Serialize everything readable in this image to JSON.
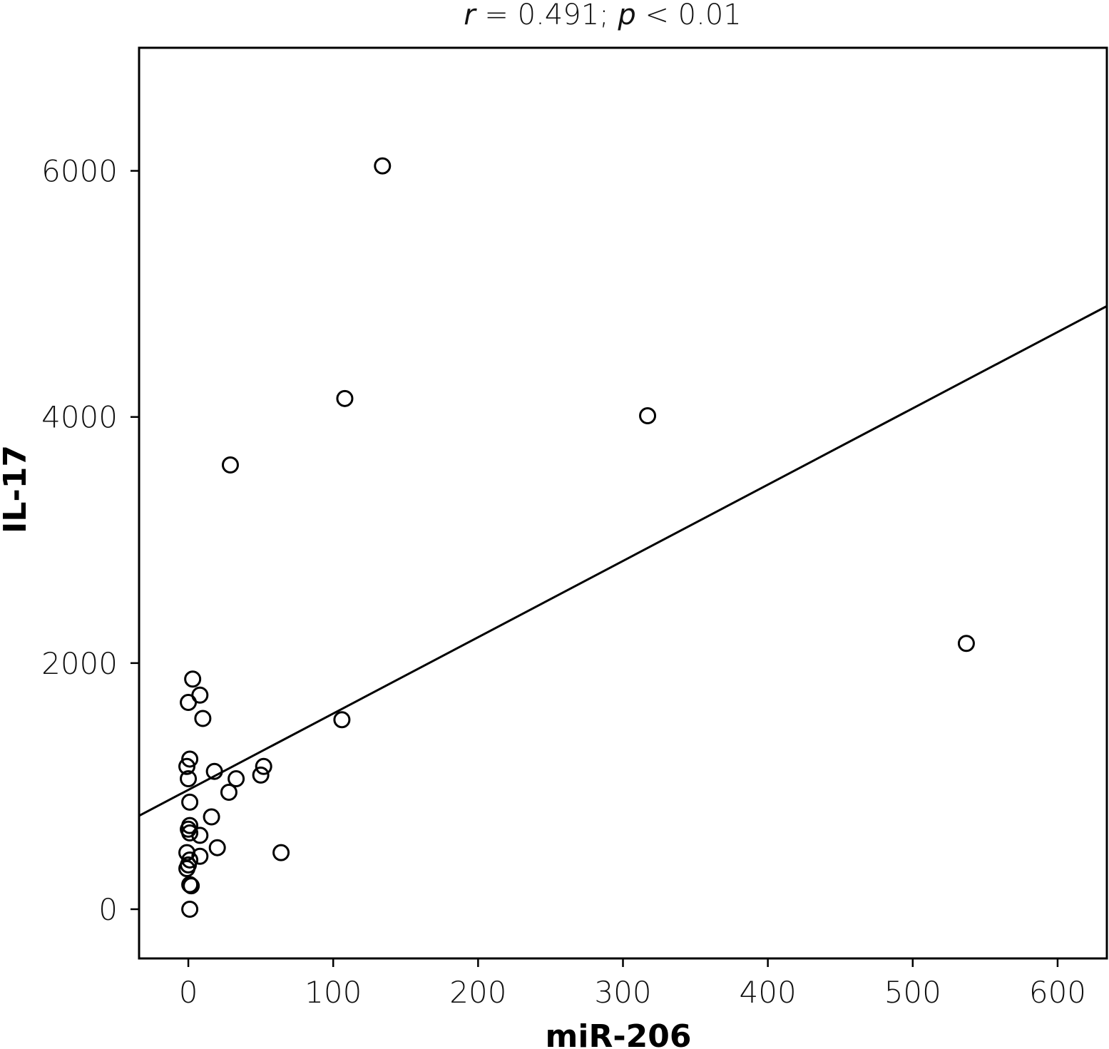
{
  "chart_data": {
    "type": "scatter",
    "title": "",
    "annotation": {
      "r_symbol": "r",
      "r_text": " = 0.491; ",
      "p_symbol": "p",
      "p_text": " < 0.01"
    },
    "xlabel": "miR-206",
    "ylabel": "IL-17",
    "xlim": [
      -34,
      634
    ],
    "ylim": [
      -400,
      7000
    ],
    "xticks": [
      0,
      100,
      200,
      300,
      400,
      500,
      600
    ],
    "yticks": [
      0,
      2000,
      4000,
      6000
    ],
    "grid": false,
    "marker": "open-circle",
    "points": [
      {
        "x": 134,
        "y": 6040
      },
      {
        "x": 108,
        "y": 4150
      },
      {
        "x": 317,
        "y": 4010
      },
      {
        "x": 29,
        "y": 3610
      },
      {
        "x": 537,
        "y": 2160
      },
      {
        "x": 3,
        "y": 1870
      },
      {
        "x": 8,
        "y": 1740
      },
      {
        "x": 0,
        "y": 1680
      },
      {
        "x": 10,
        "y": 1550
      },
      {
        "x": 106,
        "y": 1540
      },
      {
        "x": 1,
        "y": 1220
      },
      {
        "x": -1,
        "y": 1160
      },
      {
        "x": 52,
        "y": 1160
      },
      {
        "x": 18,
        "y": 1120
      },
      {
        "x": 50,
        "y": 1090
      },
      {
        "x": 0,
        "y": 1060
      },
      {
        "x": 33,
        "y": 1060
      },
      {
        "x": 28,
        "y": 950
      },
      {
        "x": 1,
        "y": 870
      },
      {
        "x": 16,
        "y": 750
      },
      {
        "x": 1,
        "y": 680
      },
      {
        "x": 0,
        "y": 650
      },
      {
        "x": 1,
        "y": 620
      },
      {
        "x": 8,
        "y": 600
      },
      {
        "x": 20,
        "y": 500
      },
      {
        "x": -1,
        "y": 460
      },
      {
        "x": 64,
        "y": 460
      },
      {
        "x": 8,
        "y": 430
      },
      {
        "x": 1,
        "y": 400
      },
      {
        "x": 0,
        "y": 360
      },
      {
        "x": -1,
        "y": 330
      },
      {
        "x": 1,
        "y": 200
      },
      {
        "x": 2,
        "y": 190
      },
      {
        "x": 1,
        "y": 0
      }
    ],
    "fit_line": {
      "intercept": 970,
      "slope": 6.2
    }
  }
}
